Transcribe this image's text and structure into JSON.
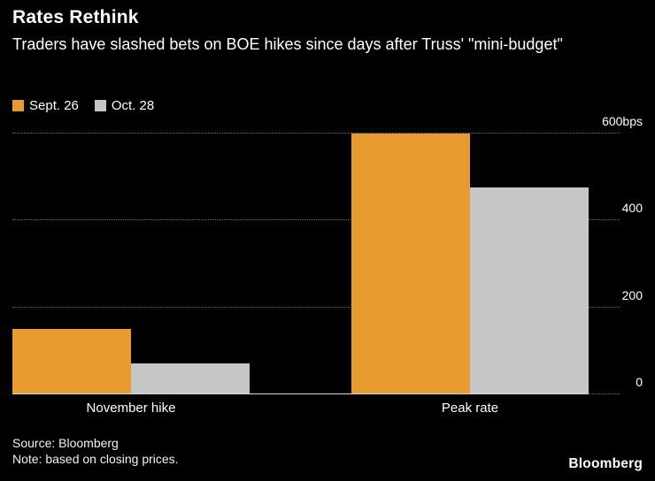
{
  "chart_data": {
    "type": "bar",
    "title": "Rates Rethink",
    "subtitle": "Traders have slashed bets on BOE hikes since days after Truss' \"mini-budget\"",
    "categories": [
      "November hike",
      "Peak rate"
    ],
    "series": [
      {
        "name": "Sept. 26",
        "color": "#E89C30",
        "values": [
          150,
          600
        ]
      },
      {
        "name": "Oct. 28",
        "color": "#C6C6C6",
        "values": [
          72,
          475
        ]
      }
    ],
    "unit": "bps",
    "yticks": [
      {
        "label": "600bps",
        "value": 600
      },
      {
        "label": "400",
        "value": 400
      },
      {
        "label": "200",
        "value": 200
      },
      {
        "label": "0",
        "value": 0
      }
    ],
    "ylim": [
      0,
      620
    ],
    "grid": "horizontal-dotted",
    "legend_position": "top-left",
    "background": "#000000"
  },
  "footer": {
    "source": "Source: Bloomberg",
    "note": "Note: based on closing prices.",
    "logo": "Bloomberg"
  }
}
